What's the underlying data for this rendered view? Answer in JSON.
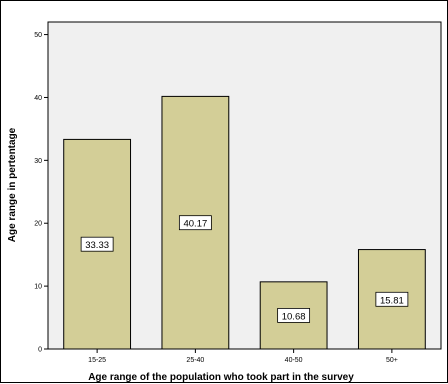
{
  "chart_data": {
    "type": "bar",
    "title": "",
    "xlabel": "Age range of the population who took part in the survey",
    "ylabel": "Age range in pertentage",
    "categories": [
      "15-25",
      "25-40",
      "40-50",
      "50+"
    ],
    "values": [
      33.33,
      40.17,
      10.68,
      15.81
    ],
    "value_labels": [
      "33.33",
      "40.17",
      "10.68",
      "15.81"
    ],
    "ylim": [
      0,
      52
    ],
    "yticks": [
      0,
      10,
      20,
      30,
      40,
      50
    ],
    "grid": false,
    "bar_color": "#d3ce97",
    "plot_background": "#f0f0f0"
  }
}
